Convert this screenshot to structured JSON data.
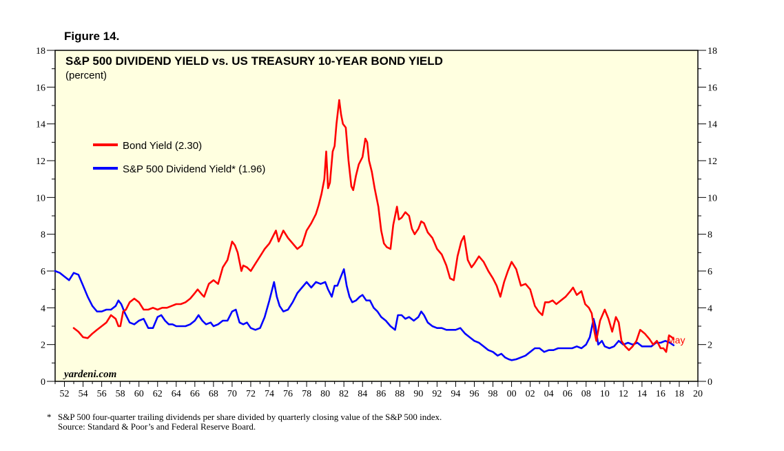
{
  "figure_label": "Figure 14.",
  "watermark": "yardeni.com",
  "footnote": {
    "marker": "*",
    "line1": "S&P 500 four-quarter trailing dividends per share divided by quarterly closing value of the S&P 500 index.",
    "line2": "Source: Standard & Poor’s and Federal Reserve Board."
  },
  "colors": {
    "background": "#ffffe0",
    "bond": "#ff0000",
    "dividend": "#0000ff"
  },
  "chart_data": {
    "type": "line",
    "title": "S&P 500 DIVIDEND YIELD vs. US TREASURY 10-YEAR BOND YIELD",
    "subtitle": "(percent)",
    "xlabel": "",
    "ylabel": "",
    "xlim": [
      1951,
      2020
    ],
    "ylim": [
      0,
      18
    ],
    "y_ticks": [
      0,
      2,
      4,
      6,
      8,
      10,
      12,
      14,
      16,
      18
    ],
    "x_tick_labels": [
      "52",
      "54",
      "56",
      "58",
      "60",
      "62",
      "64",
      "66",
      "68",
      "70",
      "72",
      "74",
      "76",
      "78",
      "80",
      "82",
      "84",
      "86",
      "88",
      "90",
      "92",
      "94",
      "96",
      "98",
      "00",
      "02",
      "04",
      "06",
      "08",
      "10",
      "12",
      "14",
      "16",
      "18",
      "20"
    ],
    "end_annotation": "May",
    "series": [
      {
        "name": "Bond Yield",
        "legend": "Bond Yield (2.30)",
        "color": "#ff0000",
        "x": [
          1953.0,
          1953.5,
          1954.0,
          1954.5,
          1955.0,
          1955.5,
          1956.0,
          1956.5,
          1957.0,
          1957.5,
          1957.8,
          1958.0,
          1958.3,
          1958.6,
          1959.0,
          1959.5,
          1960.0,
          1960.5,
          1961.0,
          1961.5,
          1962.0,
          1962.5,
          1963.0,
          1963.5,
          1964.0,
          1964.5,
          1965.0,
          1965.5,
          1966.0,
          1966.3,
          1966.8,
          1967.0,
          1967.5,
          1968.0,
          1968.5,
          1969.0,
          1969.5,
          1970.0,
          1970.3,
          1970.6,
          1971.0,
          1971.2,
          1971.6,
          1972.0,
          1972.5,
          1973.0,
          1973.5,
          1974.0,
          1974.3,
          1974.7,
          1975.0,
          1975.5,
          1976.0,
          1976.5,
          1977.0,
          1977.5,
          1978.0,
          1978.5,
          1979.0,
          1979.3,
          1979.6,
          1979.9,
          1980.1,
          1980.3,
          1980.5,
          1980.8,
          1981.0,
          1981.2,
          1981.5,
          1981.7,
          1981.9,
          1982.2,
          1982.5,
          1982.8,
          1983.0,
          1983.3,
          1983.6,
          1984.0,
          1984.3,
          1984.5,
          1984.7,
          1985.0,
          1985.3,
          1985.7,
          1986.0,
          1986.3,
          1986.6,
          1987.0,
          1987.3,
          1987.7,
          1987.9,
          1988.2,
          1988.6,
          1989.0,
          1989.3,
          1989.6,
          1990.0,
          1990.3,
          1990.6,
          1991.0,
          1991.5,
          1992.0,
          1992.5,
          1993.0,
          1993.4,
          1993.8,
          1994.2,
          1994.6,
          1994.9,
          1995.3,
          1995.7,
          1996.0,
          1996.5,
          1997.0,
          1997.5,
          1998.0,
          1998.4,
          1998.8,
          1999.2,
          1999.6,
          2000.0,
          2000.5,
          2001.0,
          2001.5,
          2002.0,
          2002.5,
          2002.9,
          2003.3,
          2003.6,
          2004.0,
          2004.4,
          2004.8,
          2005.3,
          2005.8,
          2006.3,
          2006.6,
          2007.0,
          2007.5,
          2007.9,
          2008.3,
          2008.6,
          2008.9,
          2009.1,
          2009.5,
          2010.0,
          2010.4,
          2010.8,
          2011.2,
          2011.5,
          2011.8,
          2012.2,
          2012.6,
          2013.0,
          2013.4,
          2013.8,
          2014.3,
          2014.8,
          2015.2,
          2015.6,
          2016.0,
          2016.3,
          2016.6,
          2016.9,
          2017.2,
          2017.4
        ],
        "values": [
          2.9,
          2.7,
          2.4,
          2.35,
          2.6,
          2.8,
          3.0,
          3.2,
          3.6,
          3.4,
          3.0,
          3.0,
          3.8,
          3.9,
          4.3,
          4.5,
          4.3,
          3.9,
          3.9,
          4.0,
          3.9,
          4.0,
          4.0,
          4.1,
          4.2,
          4.2,
          4.3,
          4.5,
          4.8,
          5.0,
          4.7,
          4.6,
          5.3,
          5.5,
          5.3,
          6.2,
          6.6,
          7.6,
          7.4,
          7.0,
          6.0,
          6.3,
          6.2,
          6.0,
          6.4,
          6.8,
          7.2,
          7.5,
          7.8,
          8.2,
          7.6,
          8.2,
          7.8,
          7.5,
          7.2,
          7.4,
          8.2,
          8.6,
          9.1,
          9.6,
          10.2,
          11.0,
          12.5,
          10.5,
          10.8,
          12.5,
          12.8,
          14.0,
          15.3,
          14.5,
          14.0,
          13.8,
          12.0,
          10.6,
          10.4,
          11.2,
          11.8,
          12.2,
          13.2,
          13.0,
          12.0,
          11.4,
          10.5,
          9.5,
          8.2,
          7.5,
          7.3,
          7.2,
          8.5,
          9.5,
          8.8,
          8.9,
          9.2,
          9.0,
          8.3,
          8.0,
          8.3,
          8.7,
          8.6,
          8.1,
          7.8,
          7.2,
          6.9,
          6.3,
          5.6,
          5.5,
          6.8,
          7.6,
          7.9,
          6.6,
          6.2,
          6.4,
          6.8,
          6.5,
          6.0,
          5.6,
          5.2,
          4.6,
          5.4,
          6.0,
          6.5,
          6.1,
          5.2,
          5.3,
          5.0,
          4.1,
          3.8,
          3.6,
          4.3,
          4.3,
          4.4,
          4.2,
          4.4,
          4.6,
          4.9,
          5.1,
          4.7,
          4.9,
          4.2,
          4.0,
          3.7,
          2.7,
          2.2,
          3.3,
          3.9,
          3.4,
          2.7,
          3.5,
          3.2,
          2.2,
          1.9,
          1.7,
          1.9,
          2.2,
          2.8,
          2.6,
          2.3,
          2.0,
          2.2,
          1.8,
          1.8,
          1.6,
          2.5,
          2.4,
          2.3
        ]
      },
      {
        "name": "S&P 500 Dividend Yield*",
        "legend": "S&P 500 Dividend Yield* (1.96)",
        "color": "#0000ff",
        "x": [
          1951.0,
          1951.5,
          1952.0,
          1952.5,
          1953.0,
          1953.5,
          1954.0,
          1954.5,
          1955.0,
          1955.5,
          1956.0,
          1956.5,
          1957.0,
          1957.5,
          1957.8,
          1958.1,
          1958.5,
          1959.0,
          1959.5,
          1960.0,
          1960.5,
          1961.0,
          1961.5,
          1962.0,
          1962.4,
          1962.8,
          1963.2,
          1963.6,
          1964.0,
          1964.5,
          1965.0,
          1965.5,
          1966.0,
          1966.4,
          1966.8,
          1967.2,
          1967.7,
          1968.0,
          1968.5,
          1969.0,
          1969.5,
          1970.0,
          1970.4,
          1970.8,
          1971.2,
          1971.6,
          1972.0,
          1972.5,
          1973.0,
          1973.5,
          1974.0,
          1974.5,
          1974.8,
          1975.1,
          1975.5,
          1976.0,
          1976.5,
          1977.0,
          1977.5,
          1978.0,
          1978.5,
          1979.0,
          1979.5,
          1980.0,
          1980.3,
          1980.7,
          1981.0,
          1981.3,
          1981.6,
          1982.0,
          1982.3,
          1982.6,
          1982.9,
          1983.3,
          1983.7,
          1984.0,
          1984.4,
          1984.8,
          1985.2,
          1985.6,
          1986.0,
          1986.5,
          1987.0,
          1987.5,
          1987.8,
          1988.2,
          1988.6,
          1989.0,
          1989.5,
          1990.0,
          1990.3,
          1990.6,
          1991.0,
          1991.5,
          1992.0,
          1992.5,
          1993.0,
          1993.5,
          1994.0,
          1994.5,
          1995.0,
          1995.5,
          1996.0,
          1996.5,
          1997.0,
          1997.5,
          1998.0,
          1998.5,
          1998.9,
          1999.3,
          1999.7,
          2000.0,
          2000.5,
          2001.0,
          2001.5,
          2002.0,
          2002.5,
          2003.0,
          2003.5,
          2004.0,
          2004.5,
          2005.0,
          2005.5,
          2006.0,
          2006.5,
          2007.0,
          2007.5,
          2008.0,
          2008.4,
          2008.8,
          2009.0,
          2009.3,
          2009.7,
          2010.0,
          2010.5,
          2011.0,
          2011.5,
          2012.0,
          2012.5,
          2013.0,
          2013.5,
          2014.0,
          2014.5,
          2015.0,
          2015.5,
          2016.0,
          2016.5,
          2017.0,
          2017.4
        ],
        "values": [
          6.0,
          5.9,
          5.7,
          5.5,
          5.9,
          5.8,
          5.2,
          4.6,
          4.1,
          3.8,
          3.8,
          3.9,
          3.9,
          4.1,
          4.4,
          4.2,
          3.7,
          3.2,
          3.1,
          3.3,
          3.4,
          2.9,
          2.9,
          3.5,
          3.6,
          3.3,
          3.1,
          3.1,
          3.0,
          3.0,
          3.0,
          3.1,
          3.3,
          3.6,
          3.3,
          3.1,
          3.2,
          3.0,
          3.1,
          3.3,
          3.3,
          3.8,
          3.9,
          3.2,
          3.1,
          3.2,
          2.9,
          2.8,
          2.9,
          3.5,
          4.4,
          5.4,
          4.6,
          4.1,
          3.8,
          3.9,
          4.3,
          4.8,
          5.1,
          5.4,
          5.1,
          5.4,
          5.3,
          5.4,
          5.0,
          4.6,
          5.2,
          5.2,
          5.6,
          6.1,
          5.2,
          4.6,
          4.3,
          4.4,
          4.6,
          4.7,
          4.4,
          4.4,
          4.0,
          3.8,
          3.5,
          3.3,
          3.0,
          2.8,
          3.6,
          3.6,
          3.4,
          3.5,
          3.3,
          3.5,
          3.8,
          3.6,
          3.2,
          3.0,
          2.9,
          2.9,
          2.8,
          2.8,
          2.8,
          2.9,
          2.6,
          2.4,
          2.2,
          2.1,
          1.9,
          1.7,
          1.6,
          1.4,
          1.5,
          1.3,
          1.2,
          1.15,
          1.2,
          1.3,
          1.4,
          1.6,
          1.8,
          1.8,
          1.6,
          1.7,
          1.7,
          1.8,
          1.8,
          1.8,
          1.8,
          1.9,
          1.8,
          2.0,
          2.4,
          3.4,
          3.0,
          2.0,
          2.2,
          1.9,
          1.8,
          1.9,
          2.2,
          2.0,
          2.1,
          2.0,
          2.1,
          1.9,
          1.9,
          1.9,
          2.1,
          2.1,
          2.2,
          2.1,
          1.96
        ]
      }
    ]
  }
}
